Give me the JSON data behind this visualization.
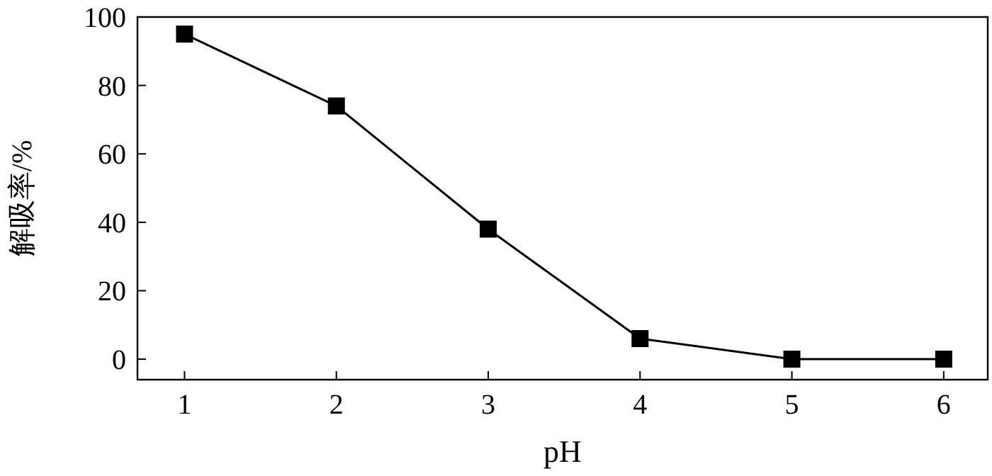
{
  "chart_data": {
    "type": "line",
    "xlabel": "pH",
    "ylabel": "解吸率/%",
    "x": [
      1,
      2,
      3,
      4,
      5,
      6
    ],
    "series": [
      {
        "color": "#000000",
        "values": [
          95,
          74,
          38,
          6,
          0,
          0
        ]
      }
    ],
    "xlim": [
      0.69,
      6.29
    ],
    "ylim": [
      -6,
      100
    ],
    "xticks": [
      1,
      2,
      3,
      4,
      5,
      6
    ],
    "yticks": [
      0,
      20,
      40,
      60,
      80,
      100
    ],
    "marker": "square",
    "line_style": "solid"
  }
}
